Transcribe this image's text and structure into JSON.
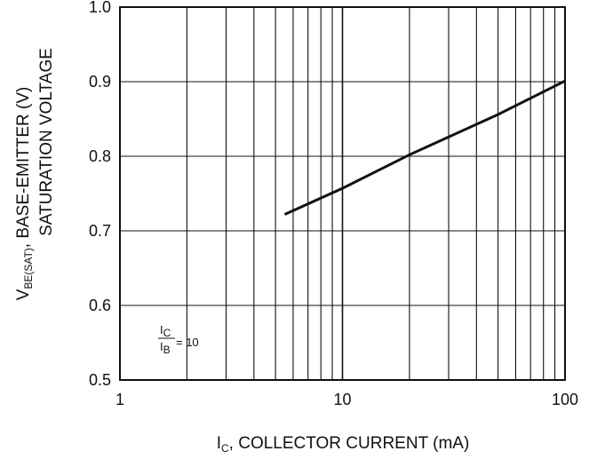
{
  "chart_data": {
    "type": "line",
    "x_scale": "log",
    "x_range": [
      1,
      100
    ],
    "y_range": [
      0.5,
      1.0
    ],
    "x_ticks": [
      "1",
      "10",
      "100"
    ],
    "y_ticks": [
      "0.5",
      "0.6",
      "0.7",
      "0.8",
      "0.9",
      "1.0"
    ],
    "grid": true,
    "xlabel": {
      "main": "I",
      "sub": "C",
      "rest": ", COLLECTOR CURRENT (mA)"
    },
    "ylabel": {
      "line1_main": "V",
      "line1_sub": "BE(SAT)",
      "line1_rest": ", BASE-EMITTER (V)",
      "line2": "SATURATION VOLTAGE"
    },
    "annotation": {
      "num_main": "I",
      "num_sub": "C",
      "den_main": "I",
      "den_sub": "B",
      "value": "= 10"
    },
    "series": [
      {
        "x": [
          5.5,
          10,
          20,
          50,
          100
        ],
        "y": [
          0.722,
          0.757,
          0.802,
          0.856,
          0.901
        ]
      }
    ],
    "line_color": "#111111"
  }
}
